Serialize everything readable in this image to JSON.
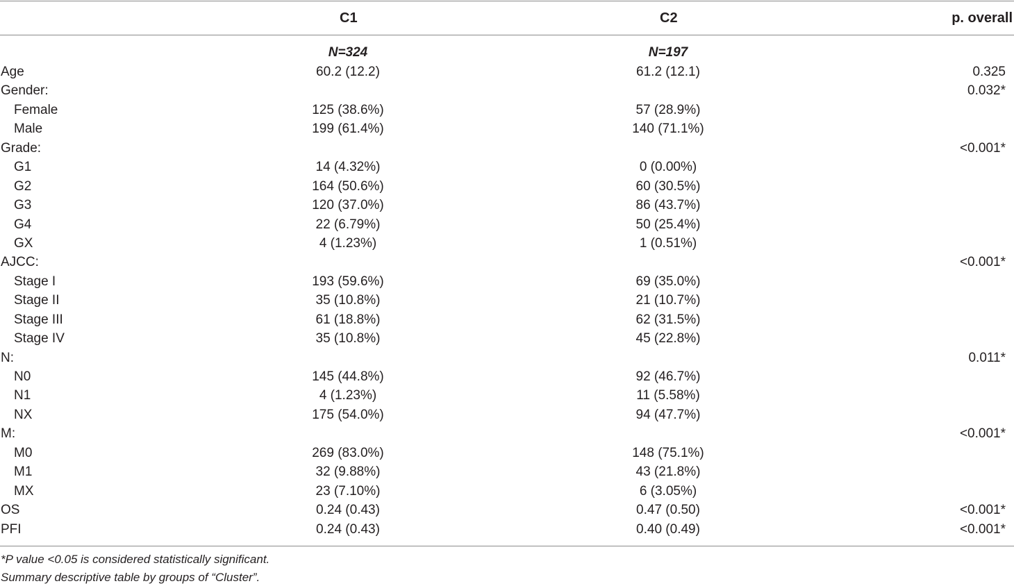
{
  "table": {
    "headers": {
      "c1": "C1",
      "c2": "C2",
      "p": "p. overall"
    },
    "n_row": {
      "c1": "N=324",
      "c2": "N=197"
    },
    "rows": [
      {
        "label": "Age",
        "c1": "60.2 (12.2)",
        "c2": "61.2 (12.1)",
        "p": "0.325",
        "indent": false
      },
      {
        "label": "Gender:",
        "c1": "",
        "c2": "",
        "p": "0.032*",
        "indent": false
      },
      {
        "label": "Female",
        "c1": "125 (38.6%)",
        "c2": "57 (28.9%)",
        "p": "",
        "indent": true
      },
      {
        "label": "Male",
        "c1": "199 (61.4%)",
        "c2": "140 (71.1%)",
        "p": "",
        "indent": true
      },
      {
        "label": "Grade:",
        "c1": "",
        "c2": "",
        "p": "<0.001*",
        "indent": false
      },
      {
        "label": "G1",
        "c1": "14 (4.32%)",
        "c2": "0 (0.00%)",
        "p": "",
        "indent": true
      },
      {
        "label": "G2",
        "c1": "164 (50.6%)",
        "c2": "60 (30.5%)",
        "p": "",
        "indent": true
      },
      {
        "label": "G3",
        "c1": "120 (37.0%)",
        "c2": "86 (43.7%)",
        "p": "",
        "indent": true
      },
      {
        "label": "G4",
        "c1": "22 (6.79%)",
        "c2": "50 (25.4%)",
        "p": "",
        "indent": true
      },
      {
        "label": "GX",
        "c1": "4 (1.23%)",
        "c2": "1 (0.51%)",
        "p": "",
        "indent": true
      },
      {
        "label": "AJCC:",
        "c1": "",
        "c2": "",
        "p": "<0.001*",
        "indent": false
      },
      {
        "label": "Stage I",
        "c1": "193 (59.6%)",
        "c2": "69 (35.0%)",
        "p": "",
        "indent": true
      },
      {
        "label": "Stage II",
        "c1": "35 (10.8%)",
        "c2": "21 (10.7%)",
        "p": "",
        "indent": true
      },
      {
        "label": "Stage III",
        "c1": "61 (18.8%)",
        "c2": "62 (31.5%)",
        "p": "",
        "indent": true
      },
      {
        "label": "Stage IV",
        "c1": "35 (10.8%)",
        "c2": "45 (22.8%)",
        "p": "",
        "indent": true
      },
      {
        "label": "N:",
        "c1": "",
        "c2": "",
        "p": "0.011*",
        "indent": false
      },
      {
        "label": "N0",
        "c1": "145 (44.8%)",
        "c2": "92 (46.7%)",
        "p": "",
        "indent": true
      },
      {
        "label": "N1",
        "c1": "4 (1.23%)",
        "c2": "11 (5.58%)",
        "p": "",
        "indent": true
      },
      {
        "label": "NX",
        "c1": "175 (54.0%)",
        "c2": "94 (47.7%)",
        "p": "",
        "indent": true
      },
      {
        "label": "M:",
        "c1": "",
        "c2": "",
        "p": "<0.001*",
        "indent": false
      },
      {
        "label": "M0",
        "c1": "269 (83.0%)",
        "c2": "148 (75.1%)",
        "p": "",
        "indent": true
      },
      {
        "label": "M1",
        "c1": "32 (9.88%)",
        "c2": "43 (21.8%)",
        "p": "",
        "indent": true
      },
      {
        "label": "MX",
        "c1": "23 (7.10%)",
        "c2": "6 (3.05%)",
        "p": "",
        "indent": true
      },
      {
        "label": "OS",
        "c1": "0.24 (0.43)",
        "c2": "0.47 (0.50)",
        "p": "<0.001*",
        "indent": false
      },
      {
        "label": "PFI",
        "c1": "0.24 (0.43)",
        "c2": "0.40 (0.49)",
        "p": "<0.001*",
        "indent": false
      }
    ]
  },
  "footnotes": {
    "significance": "*P value <0.05 is considered statistically significant.",
    "summary": "Summary descriptive table by groups of “Cluster”."
  }
}
